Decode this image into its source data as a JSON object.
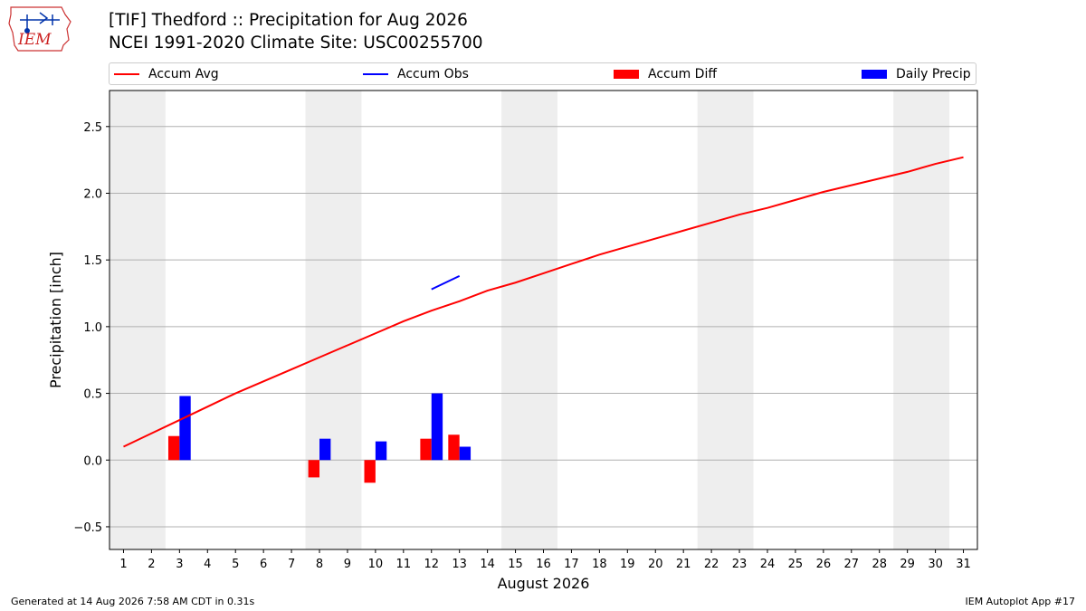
{
  "header": {
    "logo_text": "IEM",
    "title_line1": "[TIF] Thedford :: Precipitation for Aug 2026",
    "title_line2": "NCEI 1991-2020 Climate Site: USC00255700"
  },
  "footer": {
    "generated": "Generated at 14 Aug 2026 7:58 AM CDT in 0.31s",
    "app": "IEM Autoplot App #17"
  },
  "colors": {
    "avg": "#ff0000",
    "obs": "#0000ff",
    "diff": "#ff0000",
    "daily": "#0000ff",
    "weekend": "#eeeeee",
    "grid": "#b0b0b0"
  },
  "chart_data": {
    "type": "bar",
    "xlabel": "August 2026",
    "ylabel": "Precipitation [inch]",
    "xlim": [
      0.5,
      31.5
    ],
    "ylim": [
      -0.67,
      2.77
    ],
    "x_ticks": [
      1,
      2,
      3,
      4,
      5,
      6,
      7,
      8,
      9,
      10,
      11,
      12,
      13,
      14,
      15,
      16,
      17,
      18,
      19,
      20,
      21,
      22,
      23,
      24,
      25,
      26,
      27,
      28,
      29,
      30,
      31
    ],
    "y_ticks": [
      -0.5,
      0.0,
      0.5,
      1.0,
      1.5,
      2.0,
      2.5
    ],
    "y_tick_labels": [
      "−0.5",
      "0.0",
      "0.5",
      "1.0",
      "1.5",
      "2.0",
      "2.5"
    ],
    "grid": "horizontal",
    "legend": {
      "placement": "top",
      "entries": [
        "Accum Avg",
        "Accum Obs",
        "Accum Diff",
        "Daily Precip"
      ]
    },
    "weekend_bands": [
      [
        1,
        2
      ],
      [
        8,
        9
      ],
      [
        15,
        16
      ],
      [
        22,
        23
      ],
      [
        29,
        30
      ]
    ],
    "series": [
      {
        "name": "Accum Avg",
        "kind": "line",
        "x": [
          1,
          2,
          3,
          4,
          5,
          6,
          7,
          8,
          9,
          10,
          11,
          12,
          13,
          14,
          15,
          16,
          17,
          18,
          19,
          20,
          21,
          22,
          23,
          24,
          25,
          26,
          27,
          28,
          29,
          30,
          31
        ],
        "values": [
          0.1,
          0.2,
          0.3,
          0.4,
          0.5,
          0.59,
          0.68,
          0.77,
          0.86,
          0.95,
          1.04,
          1.12,
          1.19,
          1.27,
          1.33,
          1.4,
          1.47,
          1.54,
          1.6,
          1.66,
          1.72,
          1.78,
          1.84,
          1.89,
          1.95,
          2.01,
          2.06,
          2.11,
          2.16,
          2.22,
          2.27
        ]
      },
      {
        "name": "Accum Obs",
        "kind": "line",
        "x": [
          12,
          13
        ],
        "values": [
          1.28,
          1.38
        ]
      },
      {
        "name": "Accum Diff",
        "kind": "bar",
        "x": [
          3,
          8,
          10,
          12,
          13
        ],
        "values": [
          0.18,
          -0.13,
          -0.17,
          0.16,
          0.19
        ]
      },
      {
        "name": "Daily Precip",
        "kind": "bar",
        "x": [
          3,
          8,
          10,
          12,
          13
        ],
        "values": [
          0.48,
          0.16,
          0.14,
          0.5,
          0.1
        ]
      }
    ]
  }
}
